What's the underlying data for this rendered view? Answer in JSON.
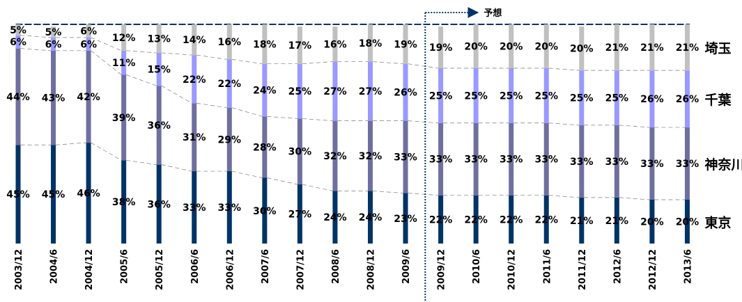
{
  "chart_data": {
    "type": "bar",
    "stacked": true,
    "normalized_percent": true,
    "categories": [
      "2003/12",
      "2004/6",
      "2004/12",
      "2005/6",
      "2005/12",
      "2006/6",
      "2006/12",
      "2007/6",
      "2007/12",
      "2008/6",
      "2008/12",
      "2009/6",
      "2009/12",
      "2010/6",
      "2010/12",
      "2011/6",
      "2011/12",
      "2012/6",
      "2012/12",
      "2013/6"
    ],
    "series": [
      {
        "name": "東京",
        "color": "#003366",
        "values": [
          45,
          45,
          46,
          38,
          36,
          33,
          33,
          30,
          27,
          24,
          24,
          23,
          22,
          22,
          22,
          22,
          21,
          21,
          20,
          20
        ],
        "labels": [
          "45%",
          "45%",
          "46%",
          "38%",
          "36%",
          "33%",
          "33%",
          "30%",
          "27%",
          "24%",
          "24%",
          "23%",
          "22%",
          "22%",
          "22%",
          "22%",
          "21%",
          "21%",
          "20%",
          "20%"
        ]
      },
      {
        "name": "神奈川",
        "color": "#6f6f9f",
        "values": [
          44,
          43,
          42,
          39,
          36,
          31,
          29,
          28,
          30,
          32,
          32,
          33,
          33,
          33,
          33,
          33,
          33,
          33,
          33,
          33
        ],
        "labels": [
          "44%",
          "43%",
          "42%",
          "39%",
          "36%",
          "31%",
          "29%",
          "28%",
          "30%",
          "32%",
          "32%",
          "33%",
          "33%",
          "33%",
          "33%",
          "33%",
          "33%",
          "33%",
          "33%",
          "33%"
        ]
      },
      {
        "name": "千葉",
        "color": "#9999ff",
        "values": [
          6,
          6,
          6,
          11,
          15,
          22,
          22,
          24,
          25,
          27,
          27,
          26,
          25,
          25,
          25,
          25,
          25,
          25,
          26,
          26
        ],
        "labels": [
          "6%",
          "6%",
          "6%",
          "11%",
          "15%",
          "22%",
          "22%",
          "24%",
          "25%",
          "27%",
          "27%",
          "26%",
          "25%",
          "25%",
          "25%",
          "25%",
          "25%",
          "25%",
          "26%",
          "26%"
        ]
      },
      {
        "name": "埼玉",
        "color": "#c0c0c0",
        "values": [
          5,
          5,
          6,
          12,
          13,
          14,
          16,
          18,
          17,
          16,
          18,
          19,
          19,
          20,
          20,
          20,
          20,
          21,
          21,
          21
        ],
        "labels": [
          "5%",
          "5%",
          "6%",
          "12%",
          "13%",
          "14%",
          "16%",
          "18%",
          "17%",
          "16%",
          "18%",
          "19%",
          "19%",
          "20%",
          "20%",
          "20%",
          "20%",
          "21%",
          "21%",
          "21%"
        ]
      }
    ],
    "ylim": [
      0,
      100
    ],
    "forecast": {
      "label": "予想",
      "start_category": "2009/12"
    },
    "legend": "right, labels beside each series"
  }
}
